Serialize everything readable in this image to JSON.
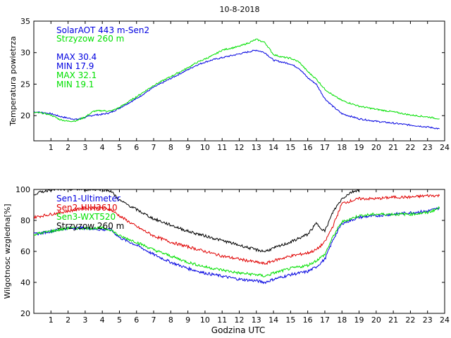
{
  "title": "10-8-2018",
  "chart_data": [
    {
      "type": "line",
      "ylabel": "Temperatura powietrza",
      "xlabel": "",
      "xlim": [
        0,
        24
      ],
      "ylim": [
        16,
        35
      ],
      "xticks": [
        1,
        2,
        3,
        4,
        5,
        6,
        7,
        8,
        9,
        10,
        11,
        12,
        13,
        14,
        15,
        16,
        17,
        18,
        19,
        20,
        21,
        22,
        23,
        24
      ],
      "yticks": [
        20,
        25,
        30,
        35
      ],
      "legend": [
        {
          "text": "SolarAOT 443 m-Sen2",
          "color": "#0000e0"
        },
        {
          "text": "Strzyzow 260 m",
          "color": "#00e000"
        }
      ],
      "stats": [
        {
          "text": "MAX 30.4",
          "color": "#0000e0"
        },
        {
          "text": "MIN 17.9",
          "color": "#0000e0"
        },
        {
          "text": "MAX 32.1",
          "color": "#00e000"
        },
        {
          "text": "MIN 19.1",
          "color": "#00e000"
        }
      ],
      "series": [
        {
          "name": "SolarAOT 443 m-Sen2",
          "color": "#0000e0",
          "x": [
            0,
            0.5,
            1,
            1.5,
            2,
            2.5,
            3,
            3.5,
            4,
            4.5,
            5,
            6,
            7,
            8,
            9,
            9.5,
            10,
            10.5,
            11,
            12,
            12.5,
            13,
            13.5,
            14,
            14.5,
            15,
            15.5,
            16,
            16.5,
            17,
            17.5,
            18,
            19,
            20,
            21,
            22,
            23,
            23.7
          ],
          "y": [
            20.6,
            20.5,
            20.3,
            19.9,
            19.6,
            19.4,
            19.7,
            20.1,
            20.2,
            20.5,
            21.2,
            22.7,
            24.5,
            25.9,
            27.3,
            28.0,
            28.5,
            28.9,
            29.2,
            29.8,
            30.1,
            30.4,
            30.0,
            28.8,
            28.5,
            28.2,
            27.5,
            26.0,
            25.0,
            22.7,
            21.4,
            20.3,
            19.5,
            19.1,
            18.8,
            18.5,
            18.2,
            17.9
          ]
        },
        {
          "name": "Strzyzow 260 m",
          "color": "#00e000",
          "x": [
            0,
            0.5,
            1,
            1.5,
            2,
            2.5,
            3,
            3.5,
            4,
            4.5,
            5,
            6,
            7,
            8,
            9,
            9.5,
            10,
            10.5,
            11,
            12,
            12.5,
            13,
            13.5,
            14,
            14.5,
            15,
            15.5,
            16,
            16.5,
            17,
            17.5,
            18,
            19,
            20,
            21,
            22,
            23,
            23.7
          ],
          "y": [
            20.5,
            20.4,
            20.1,
            19.4,
            19.1,
            19.2,
            19.8,
            20.7,
            20.8,
            20.7,
            21.3,
            23.0,
            24.8,
            26.2,
            27.6,
            28.4,
            29.0,
            29.6,
            30.4,
            31.0,
            31.5,
            32.1,
            31.6,
            29.7,
            29.3,
            29.1,
            28.5,
            27.0,
            25.8,
            24.2,
            23.2,
            22.4,
            21.5,
            21.0,
            20.6,
            20.1,
            19.8,
            19.5
          ]
        }
      ]
    },
    {
      "type": "line",
      "ylabel": "Wilgotnosc wzgledna[%]",
      "xlabel": "Godzina UTC",
      "xlim": [
        0,
        24
      ],
      "ylim": [
        20,
        100
      ],
      "xticks": [
        1,
        2,
        3,
        4,
        5,
        6,
        7,
        8,
        9,
        10,
        11,
        12,
        13,
        14,
        15,
        16,
        17,
        18,
        19,
        20,
        21,
        22,
        23,
        24
      ],
      "yticks": [
        20,
        40,
        60,
        80,
        100
      ],
      "legend": [
        {
          "text": "Sen1-Ultimeter",
          "color": "#0000e0"
        },
        {
          "text": "Sen2-HIH3610",
          "color": "#e00000"
        },
        {
          "text": "Sen3-WXT520",
          "color": "#00e000"
        },
        {
          "text": "Strzyzow 260 m",
          "color": "#000000"
        }
      ],
      "series": [
        {
          "name": "Sen1-Ultimeter",
          "color": "#0000e0",
          "x": [
            0,
            1,
            2,
            3,
            4,
            4.5,
            5,
            6,
            7,
            8,
            9,
            10,
            11,
            12,
            13,
            13.5,
            14,
            15,
            16,
            16.5,
            17,
            17.5,
            18,
            19,
            20,
            21,
            22,
            23,
            23.7
          ],
          "y": [
            71,
            73,
            75,
            75,
            74,
            74,
            69,
            64,
            58,
            53,
            49,
            46,
            44,
            42,
            41,
            40,
            42,
            45,
            47,
            50,
            55,
            68,
            78,
            82,
            83,
            84,
            85,
            86,
            88
          ]
        },
        {
          "name": "Sen2-HIH3610",
          "color": "#e00000",
          "x": [
            0,
            1,
            2,
            3,
            4,
            4.5,
            5,
            6,
            7,
            8,
            9,
            10,
            11,
            12,
            13,
            13.5,
            14,
            15,
            16,
            16.5,
            17,
            17.5,
            18,
            19,
            20,
            21,
            22,
            23,
            23.7
          ],
          "y": [
            82,
            84,
            86,
            88,
            88,
            87,
            83,
            76,
            70,
            66,
            63,
            60,
            57,
            55,
            53,
            52,
            54,
            57,
            59,
            61,
            66,
            77,
            91,
            94,
            94,
            95,
            95,
            96,
            96
          ]
        },
        {
          "name": "Sen3-WXT520",
          "color": "#00e000",
          "x": [
            0,
            1,
            2,
            3,
            4,
            4.5,
            5,
            6,
            7,
            8,
            9,
            10,
            11,
            12,
            13,
            13.5,
            14,
            15,
            16,
            16.5,
            17,
            17.5,
            18,
            19,
            20,
            21,
            22,
            23,
            23.7
          ],
          "y": [
            71,
            73,
            75,
            75,
            75,
            74,
            70,
            66,
            61,
            57,
            53,
            50,
            48,
            46,
            45,
            44,
            46,
            49,
            51,
            54,
            58,
            70,
            79,
            83,
            84,
            84,
            84,
            85,
            88
          ]
        },
        {
          "name": "Strzyzow 260 m",
          "color": "#000000",
          "x": [
            0,
            1,
            2,
            3,
            4,
            4.5,
            5,
            6,
            7,
            8,
            9,
            10,
            11,
            12,
            13,
            13.5,
            14,
            15,
            16,
            16.5,
            17,
            17.5,
            18,
            18.5,
            19
          ],
          "y": [
            97,
            100,
            100,
            100,
            100,
            99,
            93,
            87,
            81,
            77,
            73,
            70,
            67,
            64,
            61,
            60,
            62,
            66,
            71,
            78,
            73,
            86,
            94,
            98,
            100
          ]
        }
      ]
    }
  ]
}
